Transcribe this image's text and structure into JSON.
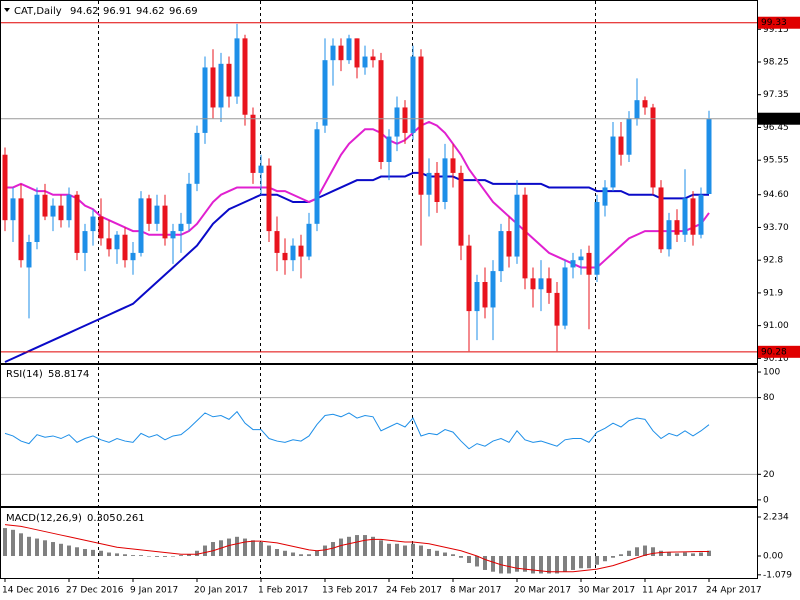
{
  "chart_data": [
    {
      "type": "candlestick",
      "title": "CAT,Daily",
      "categories": [
        "14 Dec 2016",
        null,
        null,
        null,
        null,
        null,
        null,
        null,
        "27 Dec 2016",
        null,
        null,
        null,
        null,
        null,
        null,
        null,
        "9 Jan 2017",
        null,
        null,
        null,
        null,
        null,
        null,
        null,
        "20 Jan 2017",
        null,
        null,
        null,
        null,
        null,
        null,
        null,
        "1 Feb 2017",
        null,
        null,
        null,
        null,
        null,
        null,
        null,
        "13 Feb 2017",
        null,
        null,
        null,
        null,
        null,
        null,
        null,
        "24 Feb 2017",
        null,
        null,
        null,
        null,
        null,
        null,
        null,
        "8 Mar 2017",
        null,
        null,
        null,
        null,
        null,
        null,
        null,
        "20 Mar 2017",
        null,
        null,
        null,
        null,
        null,
        null,
        null,
        "30 Mar 2017",
        null,
        null,
        null,
        null,
        null,
        null,
        null,
        "11 Apr 2017",
        null,
        null,
        null,
        null,
        null,
        null,
        null,
        "24 Apr 2017"
      ],
      "open": [
        95.7,
        93.9,
        94.5,
        92.6,
        93.3,
        94.6,
        94.0,
        94.3,
        93.9,
        94.6,
        93.0,
        93.6,
        94.0,
        93.4,
        93.1,
        93.5,
        92.8,
        93.0,
        94.5,
        93.8,
        94.3,
        93.4,
        93.6,
        93.8,
        94.9,
        96.3,
        98.1,
        97.0,
        98.2,
        97.3,
        98.9,
        96.8,
        95.2,
        95.4,
        93.6,
        93.0,
        92.8,
        93.2,
        92.9,
        93.8,
        96.5,
        98.3,
        98.7,
        98.3,
        98.9,
        98.1,
        98.4,
        98.3,
        95.5,
        96.2,
        97.0,
        96.3,
        98.4,
        94.6,
        95.2,
        94.4,
        95.6,
        95.2,
        93.2,
        91.4,
        92.2,
        91.5,
        92.5,
        93.6,
        92.9,
        94.6,
        92.3,
        92.0,
        92.3,
        91.9,
        91.0,
        92.6,
        92.8,
        93.0,
        92.4,
        94.3,
        94.8,
        96.2,
        95.7,
        96.7,
        97.2,
        97.0,
        94.8,
        93.1,
        93.9,
        93.5,
        94.5,
        93.5,
        94.62
      ],
      "high": [
        95.9,
        94.8,
        94.9,
        93.5,
        94.8,
        94.9,
        94.5,
        94.6,
        94.8,
        94.7,
        93.8,
        94.2,
        94.5,
        93.9,
        93.6,
        93.7,
        93.3,
        94.7,
        94.6,
        94.6,
        94.6,
        93.8,
        94.1,
        95.2,
        96.5,
        98.4,
        98.6,
        98.5,
        98.4,
        99.3,
        99.0,
        97.0,
        95.7,
        95.6,
        94.0,
        93.4,
        93.4,
        93.5,
        94.1,
        96.6,
        98.9,
        98.9,
        98.9,
        99.0,
        98.9,
        98.7,
        98.6,
        98.5,
        96.4,
        97.3,
        97.2,
        98.7,
        98.6,
        95.6,
        95.5,
        96.0,
        96.0,
        95.4,
        93.5,
        92.4,
        92.6,
        92.8,
        93.8,
        94.0,
        95.0,
        94.8,
        92.6,
        92.8,
        92.6,
        92.2,
        92.8,
        93.0,
        93.1,
        93.2,
        94.6,
        95.0,
        96.6,
        96.6,
        96.9,
        97.8,
        97.3,
        97.1,
        95.0,
        94.1,
        94.2,
        95.3,
        94.7,
        94.8,
        96.91
      ],
      "low": [
        93.6,
        93.3,
        92.6,
        91.2,
        93.1,
        93.9,
        93.6,
        93.7,
        93.7,
        92.8,
        92.5,
        93.2,
        93.2,
        92.9,
        92.7,
        92.6,
        92.4,
        92.9,
        93.6,
        93.6,
        93.2,
        92.7,
        93.0,
        93.6,
        94.7,
        96.0,
        96.7,
        96.6,
        97.0,
        97.1,
        96.5,
        94.9,
        94.6,
        93.3,
        92.5,
        92.4,
        92.5,
        92.3,
        92.8,
        93.6,
        96.3,
        97.6,
        98.0,
        98.2,
        97.8,
        97.9,
        98.1,
        95.3,
        95.0,
        95.8,
        96.0,
        96.1,
        93.2,
        94.0,
        94.1,
        94.2,
        94.8,
        92.8,
        90.3,
        90.6,
        91.2,
        90.6,
        92.2,
        92.6,
        92.7,
        92.0,
        91.5,
        91.4,
        91.6,
        90.3,
        90.9,
        92.3,
        92.4,
        90.9,
        92.2,
        94.0,
        94.7,
        95.4,
        95.5,
        96.5,
        96.8,
        94.6,
        93.0,
        92.9,
        93.3,
        93.3,
        93.2,
        93.4,
        94.62
      ],
      "close": [
        93.9,
        94.5,
        92.8,
        93.3,
        94.6,
        94.0,
        94.3,
        93.9,
        94.6,
        93.0,
        93.6,
        94.0,
        93.4,
        93.1,
        93.5,
        92.8,
        93.0,
        94.5,
        93.8,
        94.3,
        93.4,
        93.6,
        93.8,
        94.9,
        96.3,
        98.1,
        97.0,
        98.2,
        97.3,
        98.9,
        96.8,
        95.2,
        95.4,
        93.6,
        93.0,
        92.8,
        93.2,
        92.9,
        93.8,
        96.4,
        98.3,
        98.7,
        98.3,
        98.9,
        98.1,
        98.4,
        98.3,
        95.5,
        96.2,
        97.0,
        96.3,
        98.4,
        94.6,
        95.2,
        94.4,
        95.6,
        95.2,
        93.2,
        91.4,
        92.2,
        91.5,
        92.5,
        93.6,
        92.9,
        94.6,
        92.3,
        92.0,
        92.3,
        91.9,
        91.0,
        92.6,
        92.8,
        92.9,
        92.4,
        94.4,
        94.8,
        96.2,
        95.7,
        96.7,
        97.2,
        97.0,
        94.8,
        93.1,
        93.9,
        93.5,
        94.5,
        93.5,
        94.6,
        96.69
      ],
      "up_color": "#1e8fe8",
      "down_color": "#e8141e",
      "series": [
        {
          "color": "#0a0ac8",
          "values": [
            90.0,
            90.1,
            90.2,
            90.3,
            90.4,
            90.5,
            90.6,
            90.7,
            90.8,
            90.9,
            91.0,
            91.1,
            91.2,
            91.3,
            91.4,
            91.5,
            91.6,
            91.8,
            92.0,
            92.2,
            92.4,
            92.6,
            92.8,
            93.0,
            93.2,
            93.5,
            93.8,
            94.0,
            94.2,
            94.3,
            94.4,
            94.5,
            94.6,
            94.6,
            94.6,
            94.5,
            94.4,
            94.4,
            94.4,
            94.5,
            94.6,
            94.7,
            94.8,
            94.9,
            95.0,
            95.0,
            95.0,
            95.1,
            95.1,
            95.1,
            95.1,
            95.2,
            95.2,
            95.1,
            95.1,
            95.1,
            95.1,
            95.0,
            95.0,
            95.0,
            95.0,
            94.9,
            94.9,
            94.9,
            94.9,
            94.9,
            94.9,
            94.9,
            94.8,
            94.8,
            94.8,
            94.8,
            94.8,
            94.8,
            94.7,
            94.7,
            94.7,
            94.7,
            94.6,
            94.6,
            94.6,
            94.6,
            94.5,
            94.5,
            94.5,
            94.5,
            94.6,
            94.6,
            94.6
          ]
        },
        {
          "color": "#e020d0",
          "values": [
            94.8,
            94.8,
            94.9,
            94.8,
            94.7,
            94.7,
            94.6,
            94.6,
            94.6,
            94.5,
            94.3,
            94.2,
            94.0,
            93.9,
            93.8,
            93.7,
            93.6,
            93.6,
            93.5,
            93.5,
            93.5,
            93.5,
            93.5,
            93.6,
            93.8,
            94.1,
            94.4,
            94.6,
            94.7,
            94.8,
            94.8,
            94.8,
            94.8,
            94.8,
            94.7,
            94.7,
            94.6,
            94.5,
            94.4,
            94.5,
            94.9,
            95.3,
            95.7,
            96.0,
            96.2,
            96.4,
            96.4,
            96.3,
            96.1,
            96.0,
            96.1,
            96.3,
            96.5,
            96.6,
            96.5,
            96.3,
            96.0,
            95.7,
            95.3,
            95.0,
            94.7,
            94.4,
            94.2,
            94.0,
            93.8,
            93.6,
            93.4,
            93.2,
            93.0,
            92.9,
            92.8,
            92.7,
            92.6,
            92.6,
            92.6,
            92.8,
            93.0,
            93.2,
            93.4,
            93.5,
            93.6,
            93.6,
            93.6,
            93.6,
            93.6,
            93.6,
            93.7,
            93.8,
            94.1
          ]
        }
      ],
      "ylim": [
        90.0,
        99.9
      ],
      "yticks": [
        {
          "value": 90.1,
          "label": "90.10"
        },
        {
          "value": 91,
          "label": "91.00"
        },
        91.9,
        92.8,
        {
          "value": 93.7,
          "label": "93.70"
        },
        {
          "value": 94.6,
          "label": "94.60"
        },
        95.55,
        96.45,
        97.35,
        98.25,
        99.15
      ],
      "hlines": [
        {
          "value": 99.33,
          "color": "#e00000"
        },
        {
          "value": 96.69,
          "color": "#000000"
        },
        {
          "value": 90.28,
          "color": "#e00000"
        }
      ]
    },
    {
      "type": "line",
      "title": "RSI(14)",
      "color": "#1e8fe8",
      "values": [
        52,
        50,
        46,
        44,
        51,
        49,
        50,
        48,
        51,
        45,
        48,
        50,
        47,
        45,
        48,
        46,
        45,
        52,
        49,
        51,
        47,
        50,
        51,
        56,
        62,
        68,
        65,
        66,
        63,
        69,
        60,
        55,
        55,
        48,
        46,
        45,
        47,
        46,
        50,
        59,
        66,
        67,
        65,
        68,
        64,
        66,
        65,
        54,
        57,
        60,
        57,
        64,
        50,
        52,
        51,
        55,
        53,
        46,
        40,
        44,
        42,
        46,
        48,
        45,
        54,
        47,
        45,
        46,
        44,
        42,
        47,
        48,
        48,
        45,
        53,
        56,
        60,
        57,
        62,
        64,
        63,
        54,
        48,
        52,
        50,
        54,
        50,
        54,
        58.8174
      ],
      "ylim": [
        -4,
        105.5
      ],
      "yticks": [
        0,
        20,
        80,
        100
      ],
      "levels": [
        20,
        80
      ]
    },
    {
      "type": "bar",
      "title": "MACD(12,26,9)",
      "color": "#808080",
      "values": [
        1.6,
        1.5,
        1.3,
        1.1,
        1.0,
        0.9,
        0.8,
        0.7,
        0.6,
        0.5,
        0.4,
        0.35,
        0.3,
        0.2,
        0.15,
        0.1,
        0.05,
        0.05,
        0.0,
        -0.05,
        -0.05,
        0.0,
        0.05,
        0.1,
        0.3,
        0.6,
        0.8,
        0.9,
        1.0,
        1.1,
        1.0,
        0.9,
        0.8,
        0.6,
        0.4,
        0.3,
        0.2,
        0.1,
        0.1,
        0.3,
        0.6,
        0.8,
        1.0,
        1.1,
        1.2,
        1.2,
        1.1,
        0.9,
        0.7,
        0.7,
        0.6,
        0.7,
        0.6,
        0.4,
        0.3,
        0.2,
        0.1,
        -0.1,
        -0.4,
        -0.6,
        -0.8,
        -0.9,
        -1.0,
        -1.0,
        -0.9,
        -0.9,
        -1.0,
        -1.0,
        -1.0,
        -1.0,
        -0.9,
        -0.8,
        -0.7,
        -0.7,
        -0.5,
        -0.3,
        -0.1,
        0.1,
        0.3,
        0.5,
        0.6,
        0.5,
        0.3,
        0.2,
        0.15,
        0.2,
        0.15,
        0.2,
        0.305
      ],
      "signal_color": "#e00000",
      "signal_values": [
        1.8,
        1.75,
        1.7,
        1.6,
        1.5,
        1.4,
        1.3,
        1.2,
        1.1,
        1.0,
        0.9,
        0.8,
        0.7,
        0.6,
        0.5,
        0.45,
        0.4,
        0.35,
        0.3,
        0.25,
        0.2,
        0.15,
        0.1,
        0.1,
        0.1,
        0.2,
        0.3,
        0.45,
        0.6,
        0.7,
        0.8,
        0.85,
        0.85,
        0.8,
        0.75,
        0.65,
        0.55,
        0.45,
        0.35,
        0.3,
        0.35,
        0.45,
        0.6,
        0.7,
        0.8,
        0.9,
        0.95,
        0.95,
        0.9,
        0.85,
        0.8,
        0.8,
        0.75,
        0.7,
        0.6,
        0.5,
        0.4,
        0.3,
        0.15,
        0.0,
        -0.2,
        -0.35,
        -0.5,
        -0.6,
        -0.7,
        -0.75,
        -0.8,
        -0.85,
        -0.9,
        -0.9,
        -0.9,
        -0.9,
        -0.85,
        -0.8,
        -0.75,
        -0.65,
        -0.55,
        -0.4,
        -0.25,
        -0.1,
        0.05,
        0.15,
        0.2,
        0.22,
        0.23,
        0.24,
        0.25,
        0.26,
        0.261
      ],
      "ylim": [
        -1.26,
        2.75
      ],
      "yticks": [
        -1.079,
        {
          "value": 0,
          "label": "0.00"
        },
        2.234
      ]
    }
  ]
}
